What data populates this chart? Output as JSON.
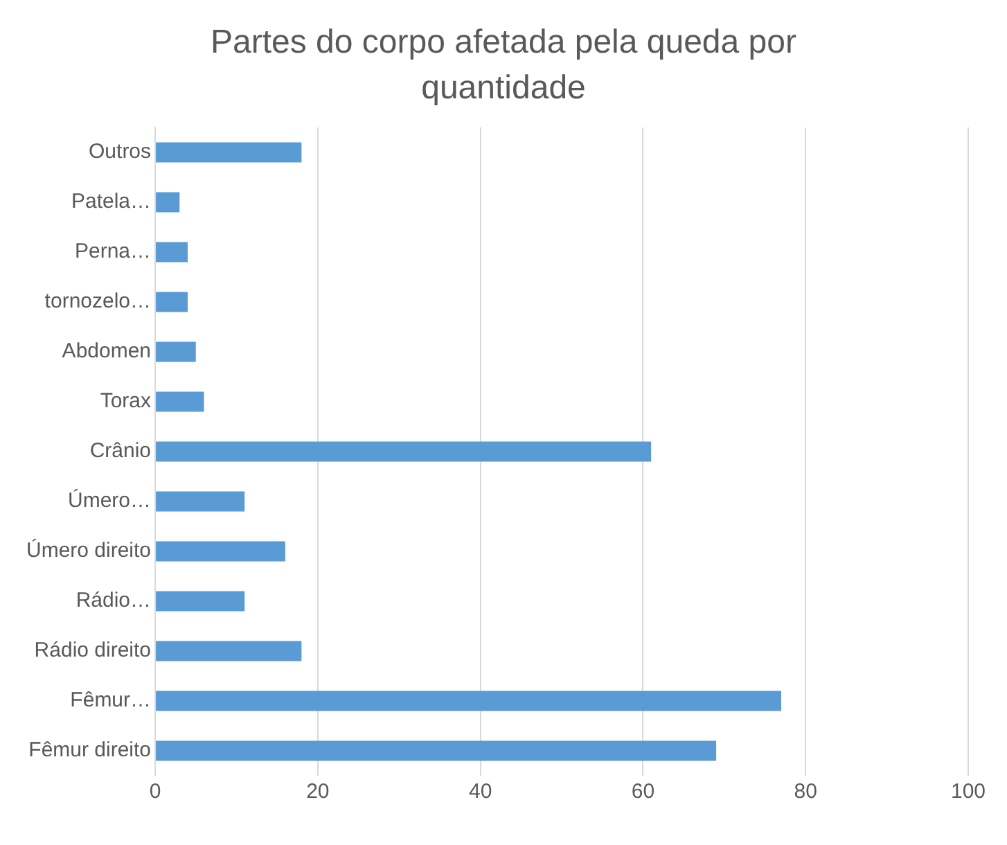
{
  "chart_data": {
    "type": "bar",
    "orientation": "horizontal",
    "title": "Partes do corpo afetada pela queda por quantidade",
    "categories": [
      "Outros",
      "Patela…",
      "Perna…",
      "tornozelo…",
      "Abdomen",
      "Torax",
      "Crânio",
      "Úmero…",
      "Úmero direito",
      "Rádio…",
      "Rádio direito",
      "Fêmur…",
      "Fêmur direito"
    ],
    "values": [
      18,
      3,
      4,
      4,
      5,
      6,
      61,
      11,
      16,
      11,
      18,
      77,
      69
    ],
    "color": "#5b9bd5",
    "xlim": [
      0,
      100
    ],
    "xticks": [
      0,
      20,
      40,
      60,
      80,
      100
    ],
    "grid": "x",
    "legend": false
  }
}
